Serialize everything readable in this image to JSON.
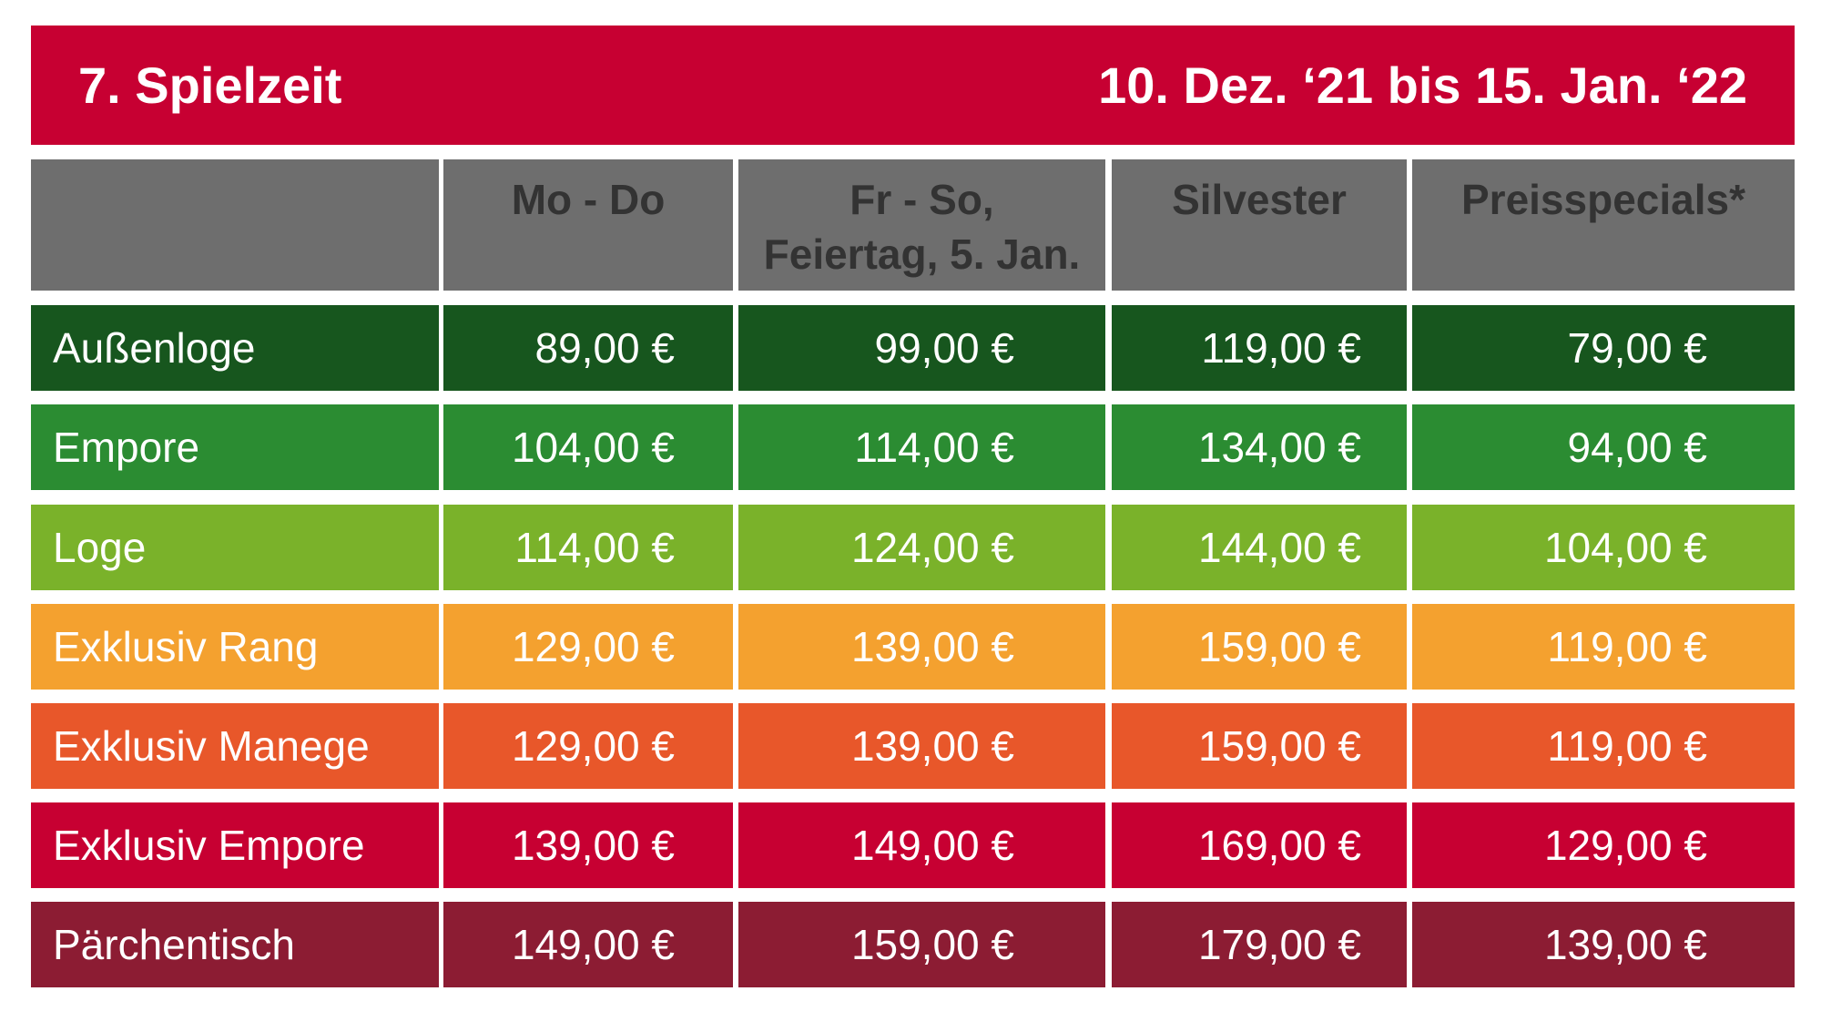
{
  "header": {
    "title": "7. Spielzeit",
    "dates": "10. Dez. ‘21 bis 15. Jan. ‘22"
  },
  "table": {
    "columns": [
      "Mo - Do",
      "Fr - So,\nFeiertag, 5. Jan.",
      "Silvester",
      "Preisspecials*"
    ],
    "rows": [
      [
        "Außenloge",
        "89,00 €",
        "99,00 €",
        "119,00 €",
        "79,00 €"
      ],
      [
        "Empore",
        "104,00 €",
        "114,00 €",
        "134,00 €",
        "94,00 €"
      ],
      [
        "Loge",
        "114,00 €",
        "124,00 €",
        "144,00 €",
        "104,00 €"
      ],
      [
        "Exklusiv Rang",
        "129,00 €",
        "139,00 €",
        "159,00 €",
        "119,00 €"
      ],
      [
        "Exklusiv Manege",
        "129,00 €",
        "139,00 €",
        "159,00 €",
        "119,00 €"
      ],
      [
        "Exklusiv Empore",
        "139,00 €",
        "149,00 €",
        "169,00 €",
        "129,00 €"
      ],
      [
        "Pärchentisch",
        "149,00 €",
        "159,00 €",
        "179,00 €",
        "139,00 €"
      ]
    ]
  }
}
